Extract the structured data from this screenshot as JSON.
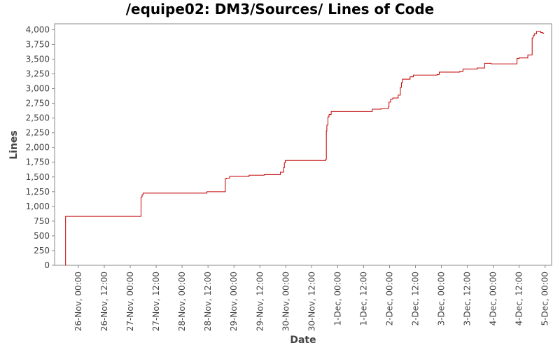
{
  "chart_data": {
    "type": "line",
    "title": "/equipe02: DM3/Sources/ Lines of Code",
    "xlabel": "Date",
    "ylabel": "Lines",
    "color": "#c00000",
    "xlim": [
      "2010-11-25T13:00",
      "2010-12-05T03:00"
    ],
    "ylim": [
      0,
      4100
    ],
    "y_ticks": [
      0,
      250,
      500,
      750,
      1000,
      1250,
      1500,
      1750,
      2000,
      2250,
      2500,
      2750,
      3000,
      3250,
      3500,
      3750,
      4000
    ],
    "y_tick_labels": [
      "0",
      "250",
      "500",
      "750",
      "1,000",
      "1,250",
      "1,500",
      "1,750",
      "2,000",
      "2,250",
      "2,500",
      "2,750",
      "3,000",
      "3,250",
      "3,500",
      "3,750",
      "4,000"
    ],
    "x_ticks": [
      "2010-11-26T00:00",
      "2010-11-26T12:00",
      "2010-11-27T00:00",
      "2010-11-27T12:00",
      "2010-11-28T00:00",
      "2010-11-28T12:00",
      "2010-11-29T00:00",
      "2010-11-29T12:00",
      "2010-11-30T00:00",
      "2010-11-30T12:00",
      "2010-12-01T00:00",
      "2010-12-01T12:00",
      "2010-12-02T00:00",
      "2010-12-02T12:00",
      "2010-12-03T00:00",
      "2010-12-03T12:00",
      "2010-12-04T00:00",
      "2010-12-04T12:00",
      "2010-12-05T00:00"
    ],
    "x_tick_labels": [
      "26-Nov, 00:00",
      "26-Nov, 12:00",
      "27-Nov, 00:00",
      "27-Nov, 12:00",
      "28-Nov, 00:00",
      "28-Nov, 12:00",
      "29-Nov, 00:00",
      "29-Nov, 12:00",
      "30-Nov, 00:00",
      "30-Nov, 12:00",
      "1-Dec, 00:00",
      "1-Dec, 12:00",
      "2-Dec, 00:00",
      "2-Dec, 12:00",
      "3-Dec, 00:00",
      "3-Dec, 12:00",
      "4-Dec, 00:00",
      "4-Dec, 12:00",
      "5-Dec, 00:00"
    ],
    "grid": false,
    "step": true,
    "x": [
      "2010-11-25T18:00",
      "2010-11-25T18:05",
      "2010-11-27T05:00",
      "2010-11-27T05:30",
      "2010-11-27T06:00",
      "2010-11-28T11:30",
      "2010-11-28T20:00",
      "2010-11-28T20:30",
      "2010-11-28T22:00",
      "2010-11-29T07:00",
      "2010-11-29T14:00",
      "2010-11-29T21:30",
      "2010-11-29T23:00",
      "2010-11-29T23:20",
      "2010-11-29T23:45",
      "2010-11-30T18:30",
      "2010-11-30T18:45",
      "2010-11-30T19:00",
      "2010-11-30T19:30",
      "2010-11-30T20:00",
      "2010-11-30T21:00",
      "2010-12-01T16:00",
      "2010-12-01T20:00",
      "2010-12-01T23:30",
      "2010-12-01T23:45",
      "2010-12-02T00:30",
      "2010-12-02T01:30",
      "2010-12-02T04:00",
      "2010-12-02T05:00",
      "2010-12-02T05:30",
      "2010-12-02T06:00",
      "2010-12-02T09:30",
      "2010-12-02T11:00",
      "2010-12-02T22:00",
      "2010-12-02T23:00",
      "2010-12-03T08:30",
      "2010-12-03T10:00",
      "2010-12-03T16:30",
      "2010-12-03T20:00",
      "2010-12-03T23:00",
      "2010-12-04T11:00",
      "2010-12-04T12:00",
      "2010-12-04T16:00",
      "2010-12-04T18:00",
      "2010-12-04T18:30",
      "2010-12-04T19:00",
      "2010-12-04T20:00",
      "2010-12-04T22:00",
      "2010-12-04T23:00",
      "2010-12-04T23:30"
    ],
    "y": [
      0,
      830,
      1160,
      1200,
      1225,
      1250,
      1470,
      1480,
      1510,
      1530,
      1540,
      1580,
      1660,
      1740,
      1780,
      1800,
      2280,
      2380,
      2520,
      2560,
      2610,
      2650,
      2660,
      2690,
      2770,
      2820,
      2840,
      2890,
      3020,
      3100,
      3160,
      3200,
      3230,
      3240,
      3280,
      3290,
      3330,
      3350,
      3430,
      3420,
      3510,
      3520,
      3570,
      3860,
      3900,
      3930,
      3970,
      3950,
      3940,
      3940
    ]
  }
}
